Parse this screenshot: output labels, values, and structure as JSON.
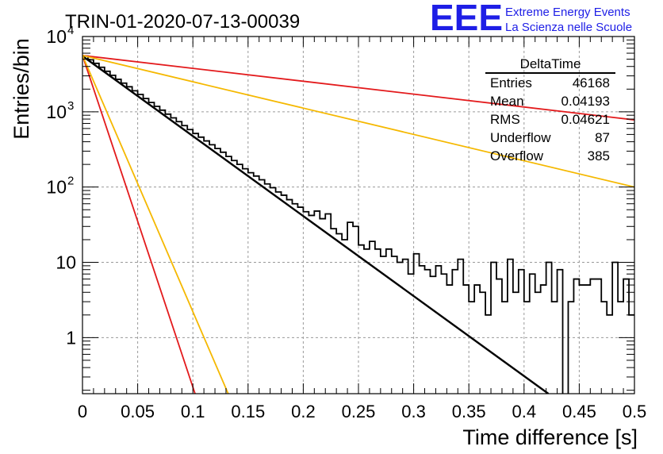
{
  "header": {
    "run_title": "TRIN-01-2020-07-13-00039",
    "logo_text": "EEE",
    "logo_line1": "Extreme Energy Events",
    "logo_line2": "La Scienza nelle Scuole",
    "logo_color": "#1e1ee6"
  },
  "stats": {
    "title": "DeltaTime",
    "rows": [
      {
        "label": "Entries",
        "value": "46168"
      },
      {
        "label": "Mean",
        "value": "0.04193"
      },
      {
        "label": "RMS",
        "value": "0.04621"
      },
      {
        "label": "Underflow",
        "value": "87"
      },
      {
        "label": "Overflow",
        "value": "385"
      }
    ]
  },
  "chart_data": {
    "type": "line",
    "title": "",
    "xlabel": "Time difference [s]",
    "ylabel": "Entries/bin",
    "xlim": [
      0,
      0.5
    ],
    "ylim": [
      0.18,
      10000
    ],
    "yscale": "log",
    "grid": true,
    "x_ticks": [
      "0",
      "0.05",
      "0.1",
      "0.15",
      "0.2",
      "0.25",
      "0.3",
      "0.35",
      "0.4",
      "0.45",
      "0.5"
    ],
    "y_ticks": [
      {
        "value": 1,
        "label": "1"
      },
      {
        "value": 10,
        "label": "10"
      },
      {
        "value": 100,
        "label": "10",
        "exp": "2"
      },
      {
        "value": 1000,
        "label": "10",
        "exp": "3"
      },
      {
        "value": 10000,
        "label": "10",
        "exp": "4"
      }
    ],
    "histogram": {
      "bin_width": 0.005,
      "color": "#000000",
      "values": [
        5500,
        4900,
        4400,
        3900,
        3450,
        3050,
        2700,
        2400,
        2150,
        1900,
        1700,
        1500,
        1330,
        1180,
        1050,
        930,
        830,
        740,
        655,
        580,
        515,
        460,
        410,
        365,
        325,
        290,
        255,
        225,
        200,
        175,
        155,
        140,
        125,
        110,
        98,
        86,
        78,
        68,
        60,
        54,
        47,
        42,
        48,
        38,
        44,
        28,
        24,
        20,
        34,
        30,
        17,
        15,
        19,
        15,
        12,
        15,
        12,
        10,
        11,
        7,
        13,
        9,
        8,
        6.5,
        9,
        7,
        5,
        8,
        11,
        5,
        3,
        5,
        4,
        2,
        10,
        6,
        3,
        11,
        4,
        8,
        3,
        7,
        4,
        5,
        10,
        3,
        8,
        0.1,
        3,
        6,
        5,
        5,
        6,
        6,
        3,
        2,
        10,
        3,
        6,
        2
      ]
    },
    "lines": [
      {
        "color": "#000000",
        "x": [
          0,
          0.422
        ],
        "y": [
          5500,
          0.18
        ]
      },
      {
        "color": "#e31a1c",
        "x": [
          0,
          0.5
        ],
        "y": [
          5600,
          780
        ]
      },
      {
        "color": "#f5b800",
        "x": [
          0,
          0.5
        ],
        "y": [
          5600,
          100
        ]
      },
      {
        "color": "#e31a1c",
        "x": [
          0,
          0.102
        ],
        "y": [
          5600,
          0.18
        ]
      },
      {
        "color": "#f5b800",
        "x": [
          0,
          0.132
        ],
        "y": [
          5600,
          0.18
        ]
      }
    ]
  }
}
